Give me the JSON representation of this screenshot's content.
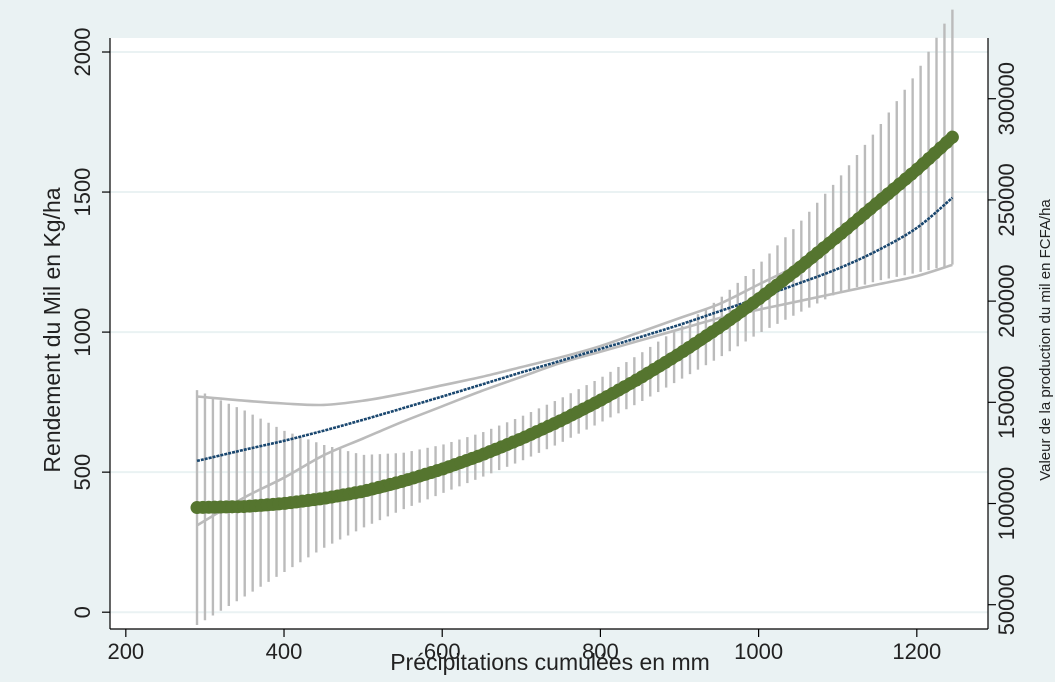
{
  "chart_data": {
    "type": "line",
    "title": "",
    "xlabel": "Précipitations cumulées en mm",
    "ylabel": "Rendement du Mil en Kg/ha",
    "y2label": "Valeur de la production du mil en FCFA/ha",
    "xlim": [
      180,
      1290
    ],
    "ylim": [
      -60,
      2050
    ],
    "y2lim": [
      38000,
      330000
    ],
    "x_ticks": [
      200,
      400,
      600,
      800,
      1000,
      1200
    ],
    "y_ticks": [
      0,
      500,
      1000,
      1500,
      2000
    ],
    "y2_ticks": [
      50000,
      100000,
      150000,
      200000,
      250000,
      300000
    ],
    "x_tick_labels": [
      "200",
      "400",
      "600",
      "800",
      "1000",
      "1200"
    ],
    "y_tick_labels": [
      "0",
      "500",
      "1000",
      "1500",
      "2000"
    ],
    "y2_tick_labels": [
      "50000",
      "100000",
      "150000",
      "200000",
      "250000",
      "300000"
    ],
    "grid": true,
    "legend": "none",
    "colors": {
      "background": "#eaf2f3",
      "plot_background": "#ffffff",
      "grid": "#eaf2f3",
      "axis": "#000000",
      "yield_line": "#1a476f",
      "value_line": "#55752f",
      "ci_band": "#bbbbbb"
    },
    "series": [
      {
        "axis": "left",
        "style": "thin-line",
        "ci_band": "outline",
        "x": [
          290,
          350,
          400,
          450,
          500,
          550,
          600,
          650,
          700,
          750,
          800,
          850,
          900,
          950,
          1000,
          1050,
          1100,
          1150,
          1200,
          1245
        ],
        "values": [
          540,
          580,
          612,
          648,
          687,
          728,
          770,
          813,
          856,
          898,
          940,
          982,
          1026,
          1074,
          1122,
          1173,
          1226,
          1291,
          1372,
          1480
        ],
        "ci_lower": [
          310,
          410,
          480,
          560,
          620,
          680,
          735,
          790,
          840,
          890,
          930,
          970,
          1010,
          1050,
          1080,
          1110,
          1140,
          1170,
          1200,
          1240
        ],
        "ci_upper": [
          770,
          755,
          745,
          740,
          755,
          780,
          810,
          840,
          875,
          910,
          950,
          1000,
          1050,
          1100,
          1170,
          1240,
          1330,
          1450,
          1570,
          1720
        ]
      },
      {
        "axis": "right",
        "style": "thick-dotted",
        "ci_band": "vertical-bars",
        "x": [
          290,
          350,
          400,
          450,
          500,
          550,
          600,
          650,
          700,
          750,
          800,
          850,
          900,
          950,
          1000,
          1050,
          1100,
          1150,
          1200,
          1245
        ],
        "values": [
          98000,
          98500,
          100000,
          102500,
          106000,
          111000,
          117000,
          124000,
          132000,
          141000,
          151000,
          162000,
          174000,
          187000,
          201000,
          216000,
          232000,
          248500,
          265000,
          281000
        ],
        "ci_lower": [
          40000,
          54000,
          66000,
          78000,
          88000,
          97000,
          105000,
          113000,
          121000,
          130000,
          140000,
          150000,
          161000,
          172000,
          184000,
          194000,
          204000,
          210000,
          214000,
          218000
        ],
        "ci_upper": [
          156000,
          146000,
          136000,
          129000,
          124000,
          125000,
          129000,
          135000,
          143000,
          152000,
          162000,
          174000,
          187000,
          201000,
          218000,
          238000,
          260000,
          285000,
          313000,
          344000
        ]
      }
    ]
  }
}
